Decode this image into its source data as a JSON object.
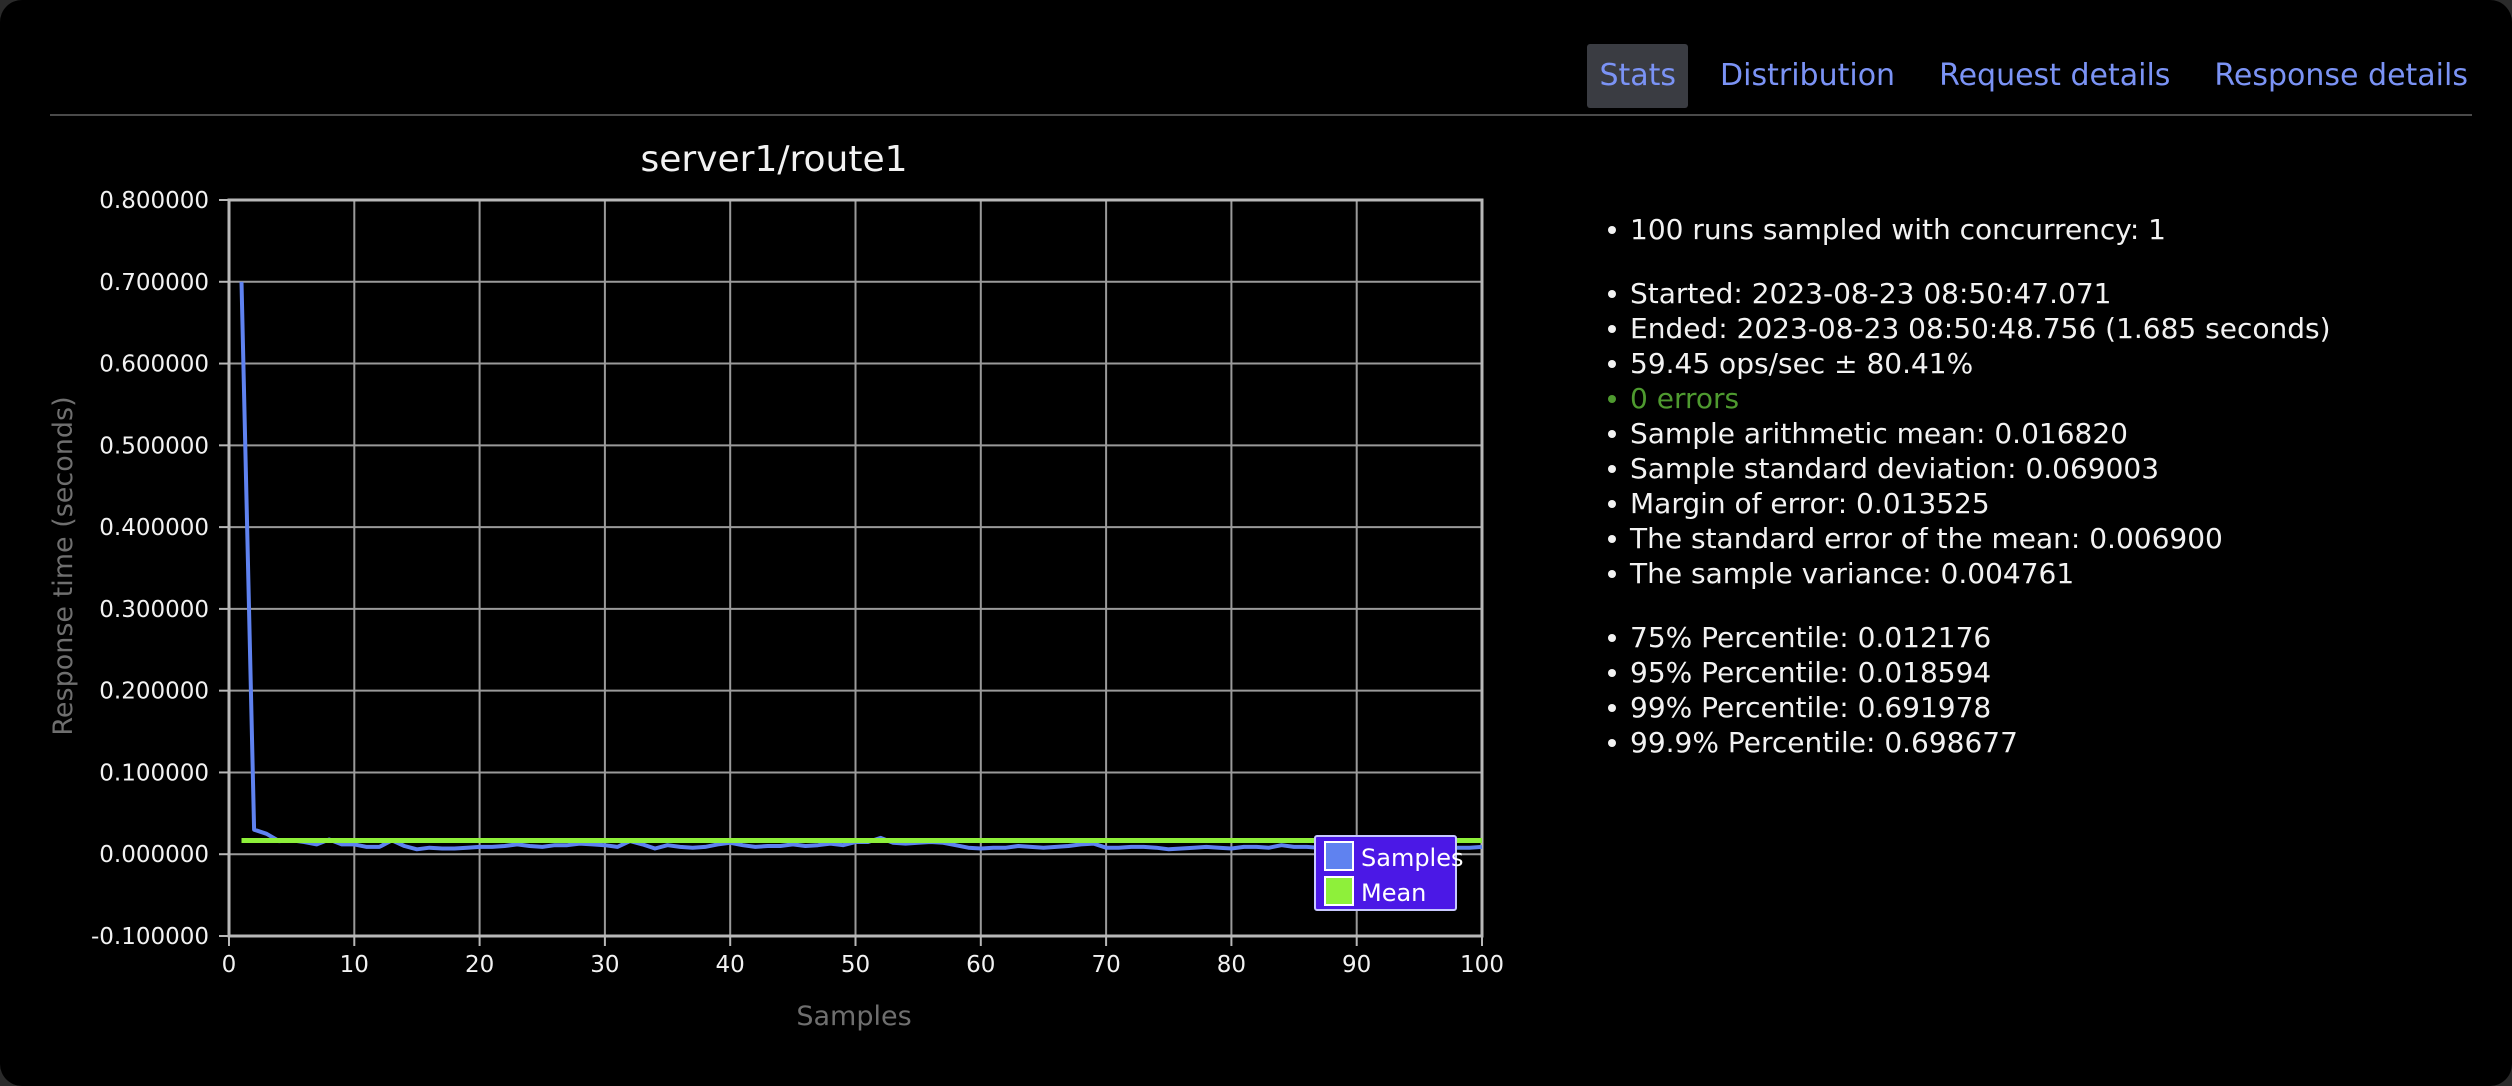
{
  "tabs": [
    {
      "label": "Stats",
      "active": true
    },
    {
      "label": "Distribution",
      "active": false
    },
    {
      "label": "Request details",
      "active": false
    },
    {
      "label": "Response details",
      "active": false
    }
  ],
  "colors": {
    "link": "#7b93f5",
    "samples": "#5f82f0",
    "mean": "#8ef03a",
    "legend_bg": "#4b18e6",
    "errors_ok": "#4e9a2f"
  },
  "stats": {
    "group1": [
      "100 runs sampled with concurrency: 1"
    ],
    "started": "Started: 2023-08-23 08:50:47.071",
    "ended": "Ended: 2023-08-23 08:50:48.756 (1.685 seconds)",
    "ops": "59.45 ops/sec ± 80.41%",
    "errors": "0 errors",
    "mean": "Sample arithmetic mean: 0.016820",
    "stddev": "Sample standard deviation: 0.069003",
    "moe": "Margin of error: 0.013525",
    "sem": "The standard error of the mean: 0.006900",
    "variance": "The sample variance: 0.004761",
    "p75": "75% Percentile: 0.012176",
    "p95": "95% Percentile: 0.018594",
    "p99": "99% Percentile: 0.691978",
    "p999": "99.9% Percentile: 0.698677"
  },
  "chart_data": {
    "type": "line",
    "title": "server1/route1",
    "xlabel": "Samples",
    "ylabel": "Response time (seconds)",
    "xlim": [
      0,
      100
    ],
    "ylim": [
      -0.1,
      0.8
    ],
    "xticks": [
      0,
      10,
      20,
      30,
      40,
      50,
      60,
      70,
      80,
      90,
      100
    ],
    "yticks": [
      "0.800000",
      "0.700000",
      "0.600000",
      "0.500000",
      "0.400000",
      "0.300000",
      "0.200000",
      "0.100000",
      "0.000000",
      "-0.100000"
    ],
    "ytick_values": [
      0.8,
      0.7,
      0.6,
      0.5,
      0.4,
      0.3,
      0.2,
      0.1,
      0.0,
      -0.1
    ],
    "grid": true,
    "legend_position": "bottom-right",
    "series": [
      {
        "name": "Samples",
        "x": [
          1,
          2,
          3,
          4,
          5,
          6,
          7,
          8,
          9,
          10,
          11,
          12,
          13,
          14,
          15,
          16,
          17,
          18,
          19,
          20,
          21,
          22,
          23,
          24,
          25,
          26,
          27,
          28,
          29,
          30,
          31,
          32,
          33,
          34,
          35,
          36,
          37,
          38,
          39,
          40,
          41,
          42,
          43,
          44,
          45,
          46,
          47,
          48,
          49,
          50,
          51,
          52,
          53,
          54,
          55,
          56,
          57,
          58,
          59,
          60,
          61,
          62,
          63,
          64,
          65,
          66,
          67,
          68,
          69,
          70,
          71,
          72,
          73,
          74,
          75,
          76,
          77,
          78,
          79,
          80,
          81,
          82,
          83,
          84,
          85,
          86,
          87,
          88,
          89,
          90,
          91,
          92,
          93,
          94,
          95,
          96,
          97,
          98,
          99,
          100
        ],
        "values": [
          0.7,
          0.03,
          0.025,
          0.016,
          0.017,
          0.015,
          0.012,
          0.018,
          0.012,
          0.012,
          0.009,
          0.009,
          0.017,
          0.01,
          0.006,
          0.008,
          0.007,
          0.007,
          0.008,
          0.009,
          0.009,
          0.01,
          0.012,
          0.01,
          0.009,
          0.011,
          0.011,
          0.013,
          0.012,
          0.011,
          0.009,
          0.016,
          0.012,
          0.007,
          0.011,
          0.009,
          0.008,
          0.009,
          0.012,
          0.014,
          0.011,
          0.009,
          0.01,
          0.01,
          0.012,
          0.01,
          0.011,
          0.013,
          0.011,
          0.015,
          0.015,
          0.02,
          0.014,
          0.013,
          0.014,
          0.015,
          0.014,
          0.011,
          0.008,
          0.007,
          0.008,
          0.008,
          0.01,
          0.009,
          0.008,
          0.009,
          0.01,
          0.012,
          0.013,
          0.008,
          0.008,
          0.009,
          0.009,
          0.008,
          0.006,
          0.007,
          0.008,
          0.009,
          0.008,
          0.007,
          0.009,
          0.009,
          0.008,
          0.011,
          0.009,
          0.009,
          0.008,
          0.01,
          0.007,
          0.006,
          0.008,
          0.008,
          0.007,
          0.009,
          0.008,
          0.007,
          0.006,
          0.008,
          0.008,
          0.009
        ]
      },
      {
        "name": "Mean",
        "x": [
          1,
          100
        ],
        "values": [
          0.01682,
          0.01682
        ]
      }
    ]
  }
}
